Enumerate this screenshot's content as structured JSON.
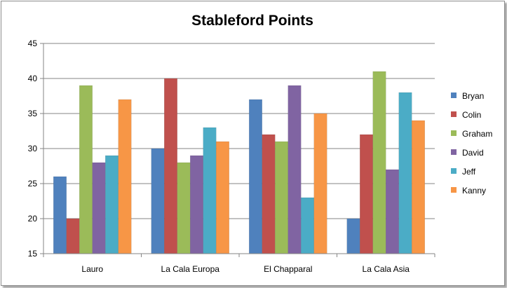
{
  "chart_data": {
    "type": "bar",
    "title": "Stableford Points",
    "categories": [
      "Lauro",
      "La Cala Europa",
      "El Chapparal",
      "La Cala Asia"
    ],
    "series": [
      {
        "name": "Bryan",
        "color": "#4F81BD",
        "values": [
          26,
          30,
          37,
          20
        ]
      },
      {
        "name": "Colin",
        "color": "#C0504D",
        "values": [
          20,
          40,
          32,
          32
        ]
      },
      {
        "name": "Graham",
        "color": "#9BBB59",
        "values": [
          39,
          28,
          31,
          41
        ]
      },
      {
        "name": "David",
        "color": "#8064A2",
        "values": [
          28,
          29,
          39,
          27
        ]
      },
      {
        "name": "Jeff",
        "color": "#4BACC6",
        "values": [
          29,
          33,
          23,
          38
        ]
      },
      {
        "name": "Kanny",
        "color": "#F79646",
        "values": [
          37,
          31,
          35,
          34
        ]
      }
    ],
    "ylim": [
      15,
      45
    ],
    "yticks": [
      15,
      20,
      25,
      30,
      35,
      40,
      45
    ],
    "grid": true,
    "legend": "right"
  }
}
